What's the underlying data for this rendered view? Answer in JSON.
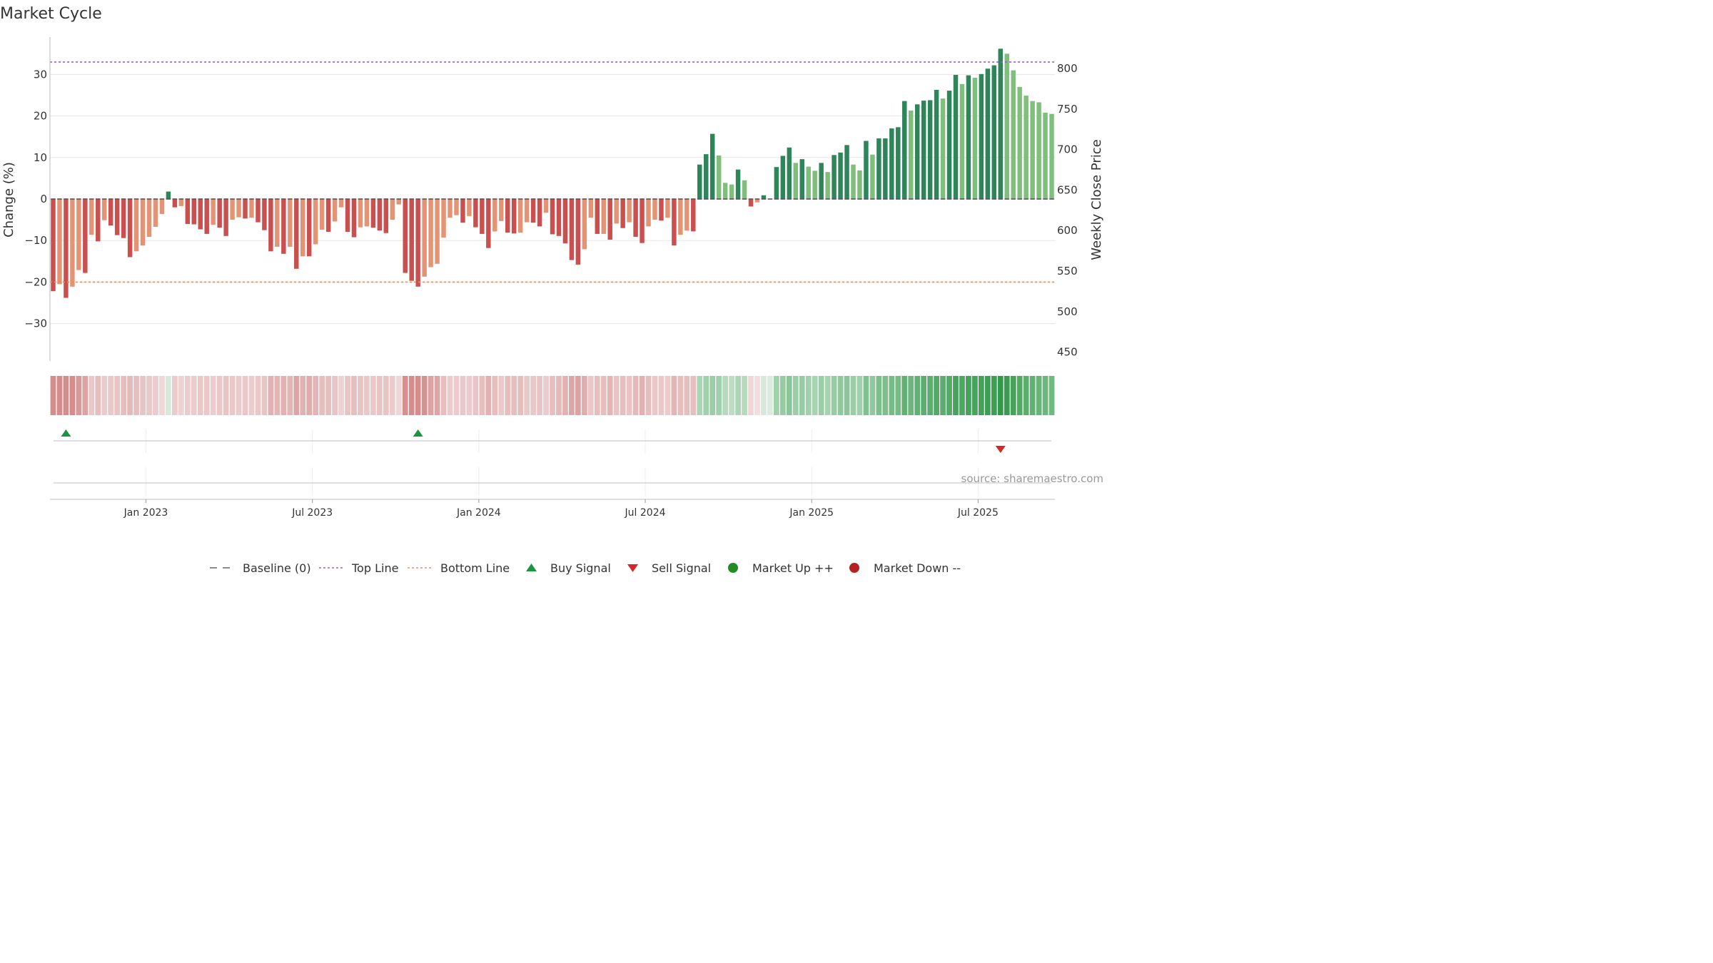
{
  "title": "Market Cycle",
  "source_text": "source: sharemaestro.com",
  "colors": {
    "strong_down": "#c9504f",
    "weak_down": "#e49474",
    "strong_up": "#2d8559",
    "weak_up": "#7fbf7b",
    "top_line": "#9467bd",
    "bottom_line": "#f08c50",
    "buy": "#1a9641",
    "sell": "#d62728",
    "market_up": "#238b23",
    "market_down": "#b22222",
    "baseline": "#555555"
  },
  "legend": [
    {
      "label": "Baseline (0)",
      "icon": "dash-line-icon"
    },
    {
      "label": "Top Line",
      "icon": "dotted-purple-line-icon"
    },
    {
      "label": "Bottom Line",
      "icon": "dotted-orange-line-icon"
    },
    {
      "label": "Buy Signal",
      "icon": "triangle-up-icon"
    },
    {
      "label": "Sell Signal",
      "icon": "triangle-down-icon"
    },
    {
      "label": "Market Up ++",
      "icon": "green-dot-icon"
    },
    {
      "label": "Market Down --",
      "icon": "red-dot-icon"
    }
  ],
  "chart_data": {
    "type": "bar",
    "ylabel_left": "Change (%)",
    "ylabel_right": "Weekly Close Price",
    "ylim_left": [
      -39,
      39
    ],
    "yticks_left": [
      "30",
      "20",
      "10",
      "0",
      "−10",
      "−20",
      "−30"
    ],
    "yticks_right": [
      "800",
      "750",
      "700",
      "650",
      "600",
      "550",
      "500",
      "450"
    ],
    "top_line": 33,
    "bottom_line": -20,
    "x_tick_labels": [
      "Jan 2023",
      "Jul 2023",
      "Jan 2024",
      "Jul 2024",
      "Jan 2025",
      "Jul 2025"
    ],
    "x_tick_indices": [
      14.5,
      40.5,
      66.5,
      92.5,
      118.5,
      144.5
    ],
    "buy_signal_indices": [
      2,
      57
    ],
    "sell_signal_indices": [
      148
    ],
    "values": [
      -22.2,
      -20.5,
      -23.8,
      -21.1,
      -17.1,
      -17.8,
      -8.6,
      -10.2,
      -5.1,
      -6.4,
      -8.7,
      -9.4,
      -14,
      -12.6,
      -11.2,
      -9.1,
      -6.7,
      -3.6,
      1.8,
      -2,
      -1.7,
      -6,
      -6.1,
      -7.3,
      -8.4,
      -6.2,
      -6.9,
      -8.9,
      -5,
      -4.4,
      -4.7,
      -4.5,
      -5.6,
      -7.5,
      -12.6,
      -11.5,
      -13.2,
      -11.5,
      -16.8,
      -13.8,
      -13.8,
      -10.9,
      -7.4,
      -7.9,
      -5.4,
      -2,
      -7.9,
      -9.2,
      -6.8,
      -6.6,
      -6.9,
      -7.6,
      -8.2,
      -5,
      -1.3,
      -17.8,
      -19.7,
      -21.1,
      -18.7,
      -16.4,
      -15.6,
      -9.3,
      -4.5,
      -3.9,
      -5.7,
      -4.1,
      -6.8,
      -8.4,
      -11.8,
      -7.8,
      -5.3,
      -8.1,
      -8.3,
      -8.1,
      -5.6,
      -5.7,
      -6.6,
      -3.3,
      -8.5,
      -8.9,
      -10.7,
      -14.7,
      -15.8,
      -12.1,
      -4.5,
      -8.4,
      -8.4,
      -9.8,
      -5.9,
      -7,
      -5.6,
      -9.1,
      -10.6,
      -6.6,
      -5,
      -5.2,
      -4.5,
      -11.2,
      -8.6,
      -7.6,
      -7.8,
      8.3,
      10.8,
      15.7,
      10.5,
      3.9,
      3.5,
      7.1,
      4.5,
      -1.8,
      -0.8,
      0.9,
      0,
      7.7,
      10.4,
      12.4,
      8.7,
      9.6,
      7.8,
      6.8,
      8.7,
      6.5,
      10.6,
      11.2,
      13,
      8.3,
      6.9,
      14,
      10.7,
      14.6,
      14.6,
      17,
      17.3,
      23.6,
      21.3,
      22.8,
      23.7,
      23.8,
      26.3,
      24.2,
      26.1,
      29.9,
      27.7,
      29.8,
      29.2,
      30.1,
      31.4,
      32.2,
      36.2,
      35,
      31,
      27,
      24.9,
      23.6,
      23.3,
      20.8,
      20.5
    ],
    "colors_by_index": "strong_down|weak_down pattern per bar (see script); up bars strong/weak green",
    "strength": [
      -2,
      -1,
      -2,
      -1,
      -1,
      -2,
      -1,
      -2,
      -1,
      -2,
      -2,
      -2,
      -2,
      -1,
      -1,
      -1,
      -1,
      -1,
      2,
      -2,
      -1,
      -2,
      -2,
      -2,
      -2,
      -1,
      -2,
      -2,
      -1,
      -1,
      -2,
      -1,
      -2,
      -2,
      -2,
      -1,
      -2,
      -1,
      -2,
      -1,
      -2,
      -1,
      -1,
      -2,
      -1,
      -1,
      -2,
      -2,
      -1,
      -1,
      -2,
      -2,
      -2,
      -1,
      -1,
      -2,
      -2,
      -2,
      -1,
      -1,
      -1,
      -1,
      -1,
      -1,
      -2,
      -1,
      -2,
      -2,
      -2,
      -1,
      -1,
      -2,
      -2,
      -1,
      -1,
      -2,
      -2,
      -1,
      -2,
      -2,
      -2,
      -2,
      -2,
      -1,
      -1,
      -2,
      -1,
      -2,
      -1,
      -2,
      -1,
      -2,
      -2,
      -1,
      -1,
      -2,
      -1,
      -2,
      -1,
      -1,
      -2,
      2,
      2,
      2,
      1,
      1,
      1,
      2,
      1,
      -2,
      -1,
      2,
      0,
      2,
      2,
      2,
      1,
      2,
      1,
      1,
      2,
      1,
      2,
      2,
      2,
      1,
      1,
      2,
      1,
      2,
      2,
      2,
      2,
      2,
      1,
      2,
      2,
      2,
      2,
      1,
      2,
      2,
      1,
      2,
      1,
      2,
      2,
      2,
      2,
      1,
      1,
      1,
      1,
      1,
      1,
      1,
      1
    ],
    "band_intensity": [
      0.62,
      0.62,
      0.62,
      0.62,
      0.55,
      0.5,
      0.3,
      0.35,
      0.28,
      0.3,
      0.32,
      0.35,
      0.38,
      0.35,
      0.32,
      0.3,
      0.28,
      0.22,
      0.2,
      0.28,
      0.25,
      0.28,
      0.28,
      0.3,
      0.3,
      0.28,
      0.3,
      0.32,
      0.3,
      0.28,
      0.3,
      0.28,
      0.3,
      0.32,
      0.42,
      0.4,
      0.42,
      0.4,
      0.48,
      0.42,
      0.45,
      0.4,
      0.35,
      0.35,
      0.32,
      0.25,
      0.32,
      0.35,
      0.32,
      0.3,
      0.3,
      0.32,
      0.32,
      0.28,
      0.22,
      0.6,
      0.62,
      0.62,
      0.6,
      0.5,
      0.48,
      0.35,
      0.28,
      0.28,
      0.3,
      0.28,
      0.32,
      0.35,
      0.42,
      0.35,
      0.3,
      0.35,
      0.35,
      0.35,
      0.3,
      0.3,
      0.32,
      0.28,
      0.35,
      0.38,
      0.42,
      0.48,
      0.5,
      0.45,
      0.3,
      0.35,
      0.35,
      0.4,
      0.32,
      0.35,
      0.32,
      0.38,
      0.42,
      0.35,
      0.3,
      0.3,
      0.28,
      0.4,
      0.35,
      0.35,
      0.35,
      0.4,
      0.45,
      0.48,
      0.45,
      0.35,
      0.32,
      0.4,
      0.35,
      0.22,
      0.18,
      0.2,
      0.18,
      0.45,
      0.5,
      0.55,
      0.48,
      0.5,
      0.45,
      0.42,
      0.48,
      0.42,
      0.5,
      0.52,
      0.55,
      0.48,
      0.45,
      0.6,
      0.52,
      0.62,
      0.62,
      0.65,
      0.65,
      0.75,
      0.7,
      0.75,
      0.78,
      0.78,
      0.82,
      0.78,
      0.82,
      0.88,
      0.85,
      0.88,
      0.88,
      0.9,
      0.92,
      0.92,
      0.98,
      0.95,
      0.88,
      0.82,
      0.78,
      0.75,
      0.72,
      0.7,
      0.68
    ]
  }
}
